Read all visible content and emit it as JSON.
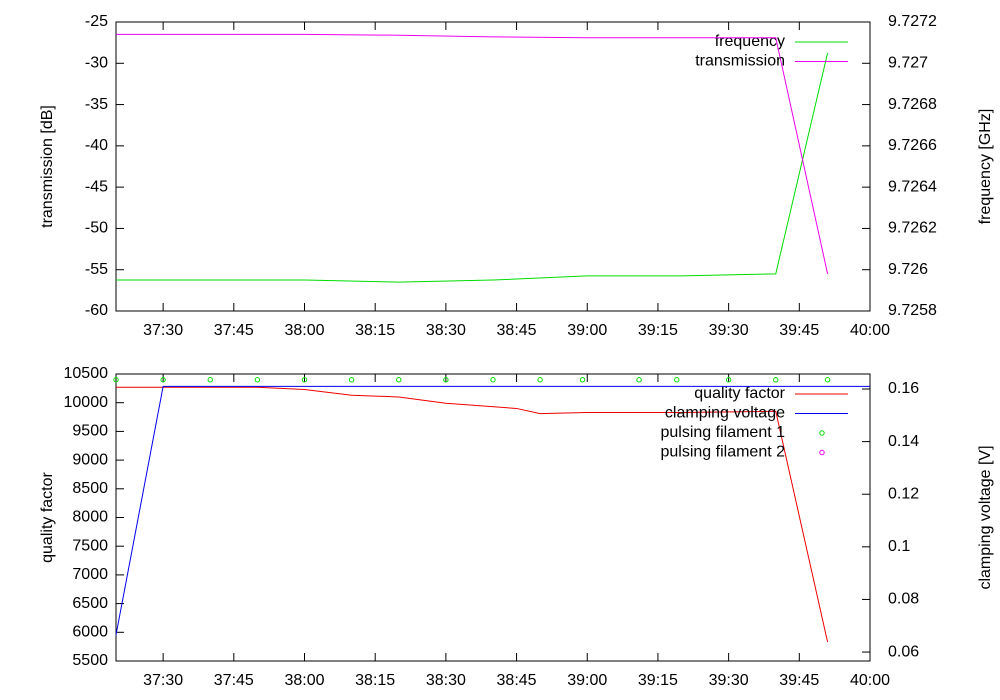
{
  "chart_data": [
    {
      "type": "line",
      "legend": "upper right",
      "ylabel": "transmission [dB]",
      "y2label": "frequency [GHz]",
      "xlim": [
        2240,
        2400
      ],
      "xticks": [
        {
          "value": 2250,
          "label": "37:30"
        },
        {
          "value": 2265,
          "label": "37:45"
        },
        {
          "value": 2280,
          "label": "38:00"
        },
        {
          "value": 2295,
          "label": "38:15"
        },
        {
          "value": 2310,
          "label": "38:30"
        },
        {
          "value": 2325,
          "label": "38:45"
        },
        {
          "value": 2340,
          "label": "39:00"
        },
        {
          "value": 2355,
          "label": "39:15"
        },
        {
          "value": 2370,
          "label": "39:30"
        },
        {
          "value": 2385,
          "label": "39:45"
        },
        {
          "value": 2400,
          "label": "40:00"
        }
      ],
      "ylim": [
        -60,
        -25
      ],
      "yticks": [
        -60,
        -55,
        -50,
        -45,
        -40,
        -35,
        -30,
        -25
      ],
      "y2lim": [
        9.7258,
        9.7272
      ],
      "y2ticks": [
        9.7258,
        9.726,
        9.7262,
        9.7264,
        9.7266,
        9.7268,
        9.727,
        9.7272
      ],
      "series": [
        {
          "name": "frequency",
          "color": "#00dd00",
          "axis": "y2",
          "style": "line",
          "x": [
            2240,
            2260,
            2280,
            2300,
            2320,
            2340,
            2360,
            2380,
            2391
          ],
          "values": [
            9.72595,
            9.72595,
            9.72595,
            9.72594,
            9.72595,
            9.72597,
            9.72597,
            9.72598,
            9.72705
          ]
        },
        {
          "name": "transmission",
          "color": "#ee00ee",
          "style": "line",
          "x": [
            2240,
            2260,
            2280,
            2300,
            2320,
            2340,
            2360,
            2380,
            2391
          ],
          "values": [
            -26.5,
            -26.5,
            -26.5,
            -26.6,
            -26.8,
            -26.9,
            -26.9,
            -26.9,
            -55.5
          ]
        }
      ]
    },
    {
      "type": "line",
      "legend": "upper right",
      "ylabel": "quality factor",
      "y2label": "clamping voltage [V]",
      "xlim": [
        2240,
        2400
      ],
      "xticks": [
        {
          "value": 2250,
          "label": "37:30"
        },
        {
          "value": 2265,
          "label": "37:45"
        },
        {
          "value": 2280,
          "label": "38:00"
        },
        {
          "value": 2295,
          "label": "38:15"
        },
        {
          "value": 2310,
          "label": "38:30"
        },
        {
          "value": 2325,
          "label": "38:45"
        },
        {
          "value": 2340,
          "label": "39:00"
        },
        {
          "value": 2355,
          "label": "39:15"
        },
        {
          "value": 2370,
          "label": "39:30"
        },
        {
          "value": 2385,
          "label": "39:45"
        },
        {
          "value": 2400,
          "label": "40:00"
        }
      ],
      "ylim": [
        5500,
        10500
      ],
      "yticks": [
        5500,
        6000,
        6500,
        7000,
        7500,
        8000,
        8500,
        9000,
        9500,
        10000,
        10500
      ],
      "y2lim": [
        0.0566,
        0.1657
      ],
      "y2ticks": [
        0.06,
        0.08,
        0.1,
        0.12,
        0.14,
        0.16
      ],
      "series": [
        {
          "name": "quality factor",
          "color": "#ee0000",
          "style": "line",
          "x": [
            2240,
            2250,
            2270,
            2280,
            2290,
            2300,
            2310,
            2325,
            2330,
            2340,
            2360,
            2380,
            2391
          ],
          "values": [
            10270,
            10270,
            10270,
            10230,
            10130,
            10100,
            9990,
            9900,
            9810,
            9830,
            9830,
            9850,
            5830
          ]
        },
        {
          "name": "clamping voltage",
          "color": "#0000ee",
          "axis": "y2",
          "style": "line",
          "x": [
            2240,
            2250,
            2270,
            2290,
            2310,
            2330,
            2350,
            2370,
            2390,
            2400
          ],
          "values": [
            0.0665,
            0.161,
            0.161,
            0.161,
            0.161,
            0.161,
            0.161,
            0.161,
            0.161,
            0.161
          ]
        },
        {
          "name": "pulsing filament 1",
          "color": "#00dd00",
          "style": "points",
          "x": [
            2240,
            2250,
            2260,
            2270,
            2280,
            2290,
            2300,
            2310,
            2320,
            2330,
            2339,
            2351,
            2359,
            2370,
            2380,
            2391
          ],
          "values": [
            10400,
            10400,
            10400,
            10400,
            10400,
            10400,
            10400,
            10400,
            10400,
            10400,
            10400,
            10400,
            10400,
            10400,
            10400,
            10400
          ]
        },
        {
          "name": "pulsing filament 2",
          "color": "#ee00ee",
          "style": "points",
          "x": [
            2240,
            2391
          ],
          "values": [
            null,
            null
          ]
        }
      ]
    }
  ]
}
